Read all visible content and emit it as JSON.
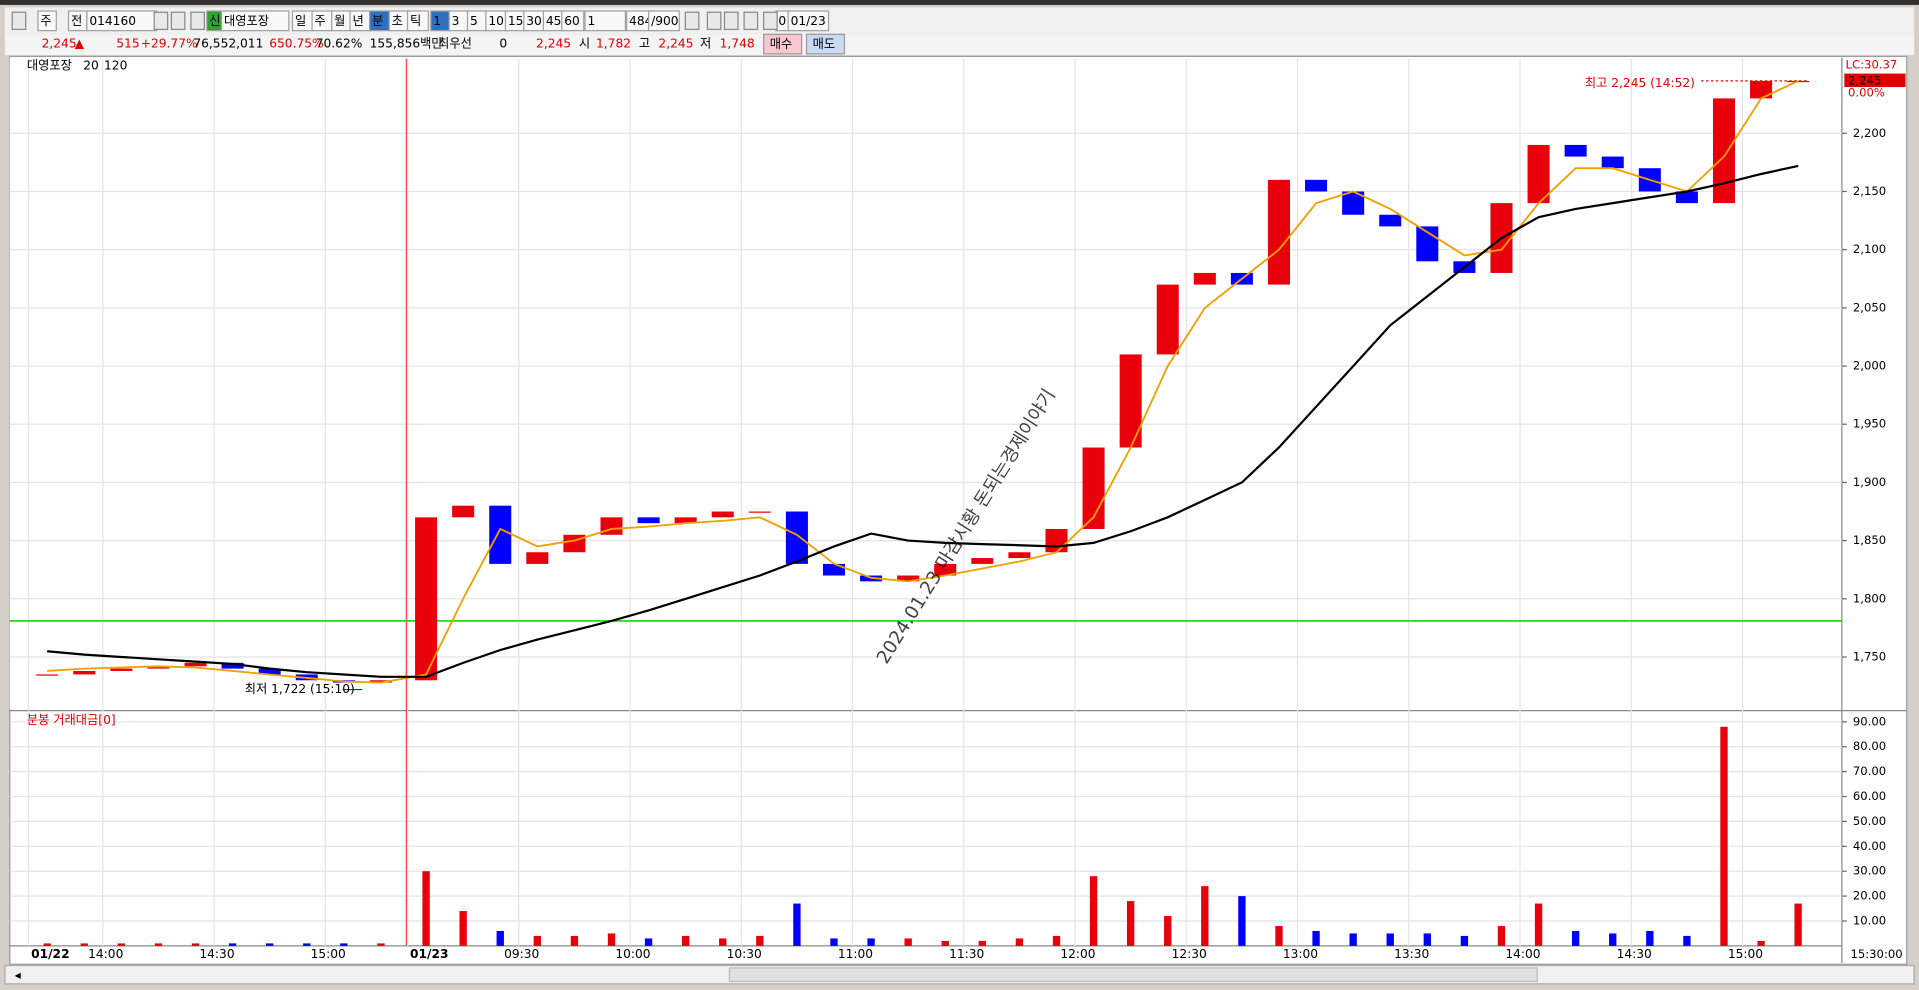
{
  "toolbar": {
    "items": [
      "주",
      "전",
      "014160",
      "신",
      "대영포장",
      "일",
      "주",
      "월",
      "년",
      "분",
      "초",
      "틱",
      "1",
      "3",
      "5",
      "10",
      "15",
      "30",
      "45",
      "60",
      "1",
      "484",
      "/900",
      "0",
      "01/23"
    ]
  },
  "quote_bar": {
    "items": [
      "2,245",
      "515",
      "+29.77%",
      "76,552,011",
      "650.75%",
      "70.62%",
      "155,856백만",
      "최우선",
      "0",
      "2,245",
      "시",
      "1,782",
      "고",
      "2,245",
      "저",
      "1,748"
    ],
    "buy_button": "매수",
    "sell_button": "매도"
  },
  "watermark": "2024.01.23 마감시황 돈되는경제이야기",
  "chart_data": [
    {
      "type": "candlestick",
      "up_color": "#e8000b",
      "down_color": "#0000ff",
      "series": [
        {
          "name": "대영포장",
          "color": "#e8000b",
          "values": [
            1735,
            1738,
            1740,
            1742,
            1745,
            1740,
            1735,
            1730,
            1728,
            1730,
            1870,
            1880,
            1830,
            1840,
            1855,
            1870,
            1865,
            1870,
            1875,
            1875,
            1830,
            1820,
            1815,
            1820,
            1830,
            1835,
            1840,
            1860,
            1930,
            2010,
            2070,
            2080,
            2070,
            2160,
            2150,
            2130,
            2120,
            2090,
            2080,
            2140,
            2190,
            2180,
            2170,
            2150,
            2140,
            2230,
            2245,
            2245
          ]
        },
        {
          "name": "20",
          "color": "#f0a000",
          "values": [
            1738,
            1740,
            1741,
            1742,
            1741,
            1738,
            1735,
            1732,
            1729,
            1728,
            1735,
            1800,
            1860,
            1845,
            1850,
            1860,
            1862,
            1865,
            1867,
            1870,
            1855,
            1830,
            1818,
            1815,
            1820,
            1826,
            1832,
            1840,
            1870,
            1930,
            2000,
            2050,
            2075,
            2100,
            2140,
            2150,
            2135,
            2115,
            2095,
            2100,
            2140,
            2170,
            2170,
            2160,
            2150,
            2180,
            2230,
            2245
          ]
        },
        {
          "name": "120",
          "color": "#000000",
          "values": [
            1755,
            1752,
            1750,
            1748,
            1746,
            1744,
            1740,
            1737,
            1735,
            1733,
            1733,
            1745,
            1756,
            1765,
            1773,
            1781,
            1790,
            1800,
            1810,
            1820,
            1832,
            1845,
            1856,
            1850,
            1848,
            1847,
            1846,
            1845,
            1848,
            1858,
            1870,
            1885,
            1900,
            1930,
            1965,
            2000,
            2035,
            2060,
            2085,
            2110,
            2128,
            2135,
            2140,
            2145,
            2150,
            2157,
            2165,
            2172
          ]
        }
      ],
      "ylim": [
        1706,
        2264
      ],
      "yticks": [
        {
          "value": 1750,
          "label": "1,750"
        },
        {
          "value": 1800,
          "label": "1,800"
        },
        {
          "value": 1850,
          "label": "1,850"
        },
        {
          "value": 1900,
          "label": "1,900"
        },
        {
          "value": 1950,
          "label": "1,950"
        },
        {
          "value": 2000,
          "label": "2,000"
        },
        {
          "value": 2050,
          "label": "2,050"
        },
        {
          "value": 2100,
          "label": "2,100"
        },
        {
          "value": 2150,
          "label": "2,150"
        },
        {
          "value": 2200,
          "label": "2,200"
        }
      ],
      "grid": true,
      "reference_line": {
        "value": 1781,
        "color": "#00e000"
      },
      "annotations": [
        {
          "text": "최고 2,245 (14:52)",
          "value": 2245
        },
        {
          "text": "최저 1,722 (15:10)",
          "value": 1722
        }
      ],
      "last_price": {
        "text": "2,245",
        "value": 2245
      },
      "change_label": "0.00%",
      "lc_label": "LC:30.37"
    },
    {
      "type": "bar",
      "title": "분봉 거래대금[0]",
      "categories": [
        "01/22",
        null,
        "14:00",
        null,
        null,
        "14:30",
        null,
        null,
        "15:00",
        null,
        "01/23",
        null,
        null,
        "09:30",
        null,
        null,
        "10:00",
        null,
        null,
        "10:30",
        null,
        null,
        "11:00",
        null,
        null,
        "11:30",
        null,
        null,
        "12:00",
        null,
        null,
        "12:30",
        null,
        null,
        "13:00",
        null,
        null,
        "13:30",
        null,
        null,
        "14:00",
        null,
        null,
        "14:30",
        null,
        null,
        "15:00",
        null
      ],
      "values": [
        1,
        1,
        1,
        1,
        1,
        1,
        1,
        1,
        1,
        1,
        30,
        14,
        6,
        4,
        4,
        5,
        3,
        4,
        3,
        4,
        17,
        3,
        3,
        3,
        2,
        2,
        3,
        4,
        28,
        18,
        12,
        24,
        20,
        8,
        6,
        5,
        5,
        5,
        4,
        8,
        17,
        6,
        5,
        6,
        4,
        88,
        2,
        17
      ],
      "ylim": [
        0,
        94
      ],
      "yticks": [
        {
          "value": 10,
          "label": "10.00"
        },
        {
          "value": 20,
          "label": "20.00"
        },
        {
          "value": 30,
          "label": "30.00"
        },
        {
          "value": 40,
          "label": "40.00"
        },
        {
          "value": 50,
          "label": "50.00"
        },
        {
          "value": 60,
          "label": "60.00"
        },
        {
          "value": 70,
          "label": "70.00"
        },
        {
          "value": 80,
          "label": "80.00"
        },
        {
          "value": 90,
          "label": "90.00"
        }
      ],
      "grid": true,
      "corner_label": "15:30:00"
    }
  ]
}
